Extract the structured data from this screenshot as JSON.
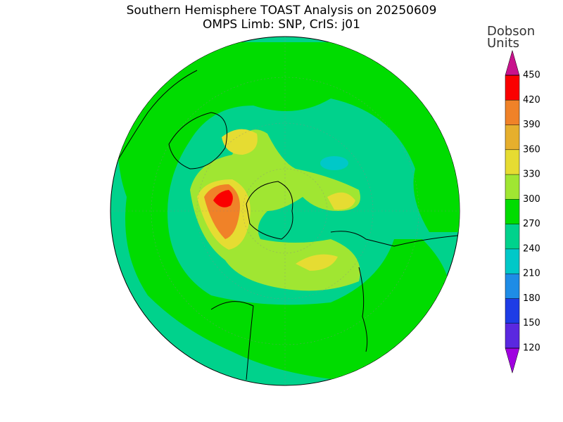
{
  "title": [
    "Southern Hemisphere TOAST Analysis on 20250609",
    "OMPS Limb: SNP, CrIS: j01"
  ],
  "colorbar": {
    "label": [
      "Dobson",
      "Units"
    ],
    "ticks": [
      120,
      150,
      180,
      210,
      240,
      270,
      300,
      330,
      360,
      390,
      420,
      450
    ],
    "colors": [
      "#a000e0",
      "#5a28e0",
      "#1e3ce6",
      "#1e8ce6",
      "#00c8c8",
      "#00d28c",
      "#00dc00",
      "#a0e632",
      "#e6dc32",
      "#e6af2d",
      "#f08228",
      "#fa0000",
      "#c8128c"
    ]
  }
}
